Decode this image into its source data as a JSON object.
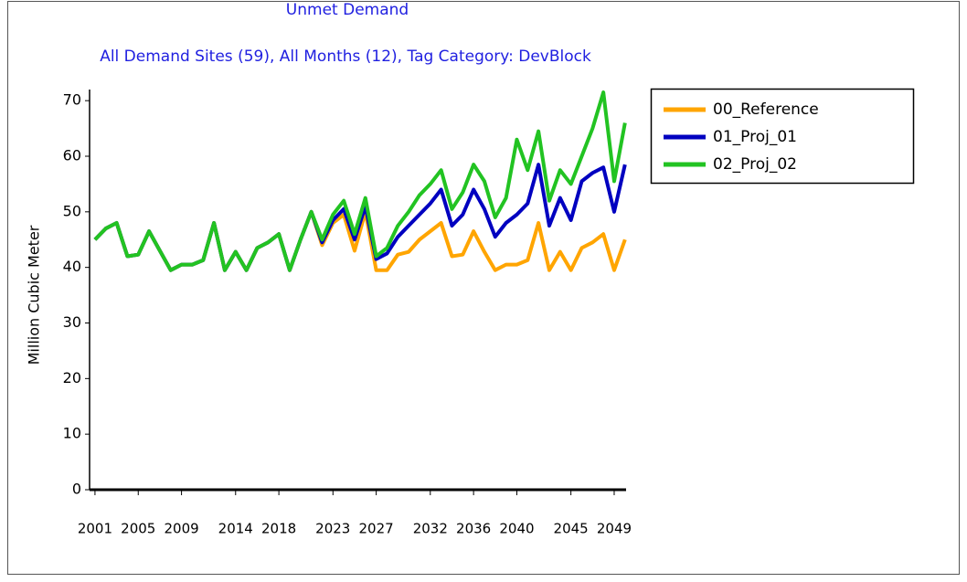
{
  "chart_data": {
    "type": "line",
    "title": "Unmet Demand",
    "subtitle": "All Demand Sites (59),  All Months (12),  Tag Category: DevBlock",
    "y_label": "Million Cubic Meter",
    "x": [
      2001,
      2002,
      2003,
      2004,
      2005,
      2006,
      2007,
      2008,
      2009,
      2010,
      2011,
      2012,
      2013,
      2014,
      2015,
      2016,
      2017,
      2018,
      2019,
      2020,
      2021,
      2022,
      2023,
      2024,
      2025,
      2026,
      2027,
      2028,
      2029,
      2030,
      2031,
      2032,
      2033,
      2034,
      2035,
      2036,
      2037,
      2038,
      2039,
      2040,
      2041,
      2042,
      2043,
      2044,
      2045,
      2046,
      2047,
      2048,
      2049,
      2050
    ],
    "series": [
      {
        "name": "00_Reference",
        "color": "#ffa500",
        "values": [
          45,
          47,
          48,
          42,
          42.3,
          46.5,
          43,
          39.5,
          40.5,
          40.5,
          41.3,
          48,
          39.5,
          42.8,
          39.5,
          43.5,
          44.5,
          46,
          39.5,
          45,
          50,
          44,
          48,
          49.5,
          43,
          50,
          39.5,
          39.5,
          42.3,
          42.8,
          45,
          46.5,
          48,
          42,
          42.3,
          46.5,
          42.8,
          39.5,
          40.5,
          40.5,
          41.3,
          48,
          39.5,
          42.8,
          39.5,
          43.5,
          44.5,
          46,
          39.5,
          45
        ]
      },
      {
        "name": "01_Proj_01",
        "color": "#0000c0",
        "values": [
          45,
          47,
          48,
          42,
          42.3,
          46.5,
          43,
          39.5,
          40.5,
          40.5,
          41.3,
          48,
          39.5,
          42.8,
          39.5,
          43.5,
          44.5,
          46,
          39.5,
          45,
          50,
          44.5,
          48.5,
          50.5,
          45,
          51,
          41.5,
          42.5,
          45.5,
          47.5,
          49.5,
          51.5,
          54,
          47.5,
          49.5,
          54,
          50.5,
          45.5,
          48,
          49.5,
          51.5,
          58.5,
          47.5,
          52.5,
          48.5,
          55.5,
          57,
          58,
          50,
          58.5
        ]
      },
      {
        "name": "02_Proj_02",
        "color": "#22c322",
        "values": [
          45,
          47,
          48,
          42,
          42.3,
          46.5,
          43,
          39.5,
          40.5,
          40.5,
          41.3,
          48,
          39.5,
          42.8,
          39.5,
          43.5,
          44.5,
          46,
          39.5,
          45,
          50,
          45,
          49.5,
          52,
          46,
          52.5,
          42,
          43.5,
          47.5,
          50,
          53,
          55,
          57.5,
          50.5,
          53.5,
          58.5,
          55.5,
          49,
          52.5,
          63,
          57.5,
          64.5,
          52,
          57.5,
          55,
          60,
          65,
          71.5,
          55.5,
          66
        ]
      }
    ],
    "xlim": [
      2000.5,
      2050.1
    ],
    "xticks": [
      2001,
      2005,
      2009,
      2014,
      2018,
      2023,
      2027,
      2032,
      2036,
      2040,
      2045,
      2049
    ],
    "ylim": [
      0,
      72
    ],
    "yticks": [
      0,
      10,
      20,
      30,
      40,
      50,
      60,
      70
    ],
    "legend": "right"
  }
}
